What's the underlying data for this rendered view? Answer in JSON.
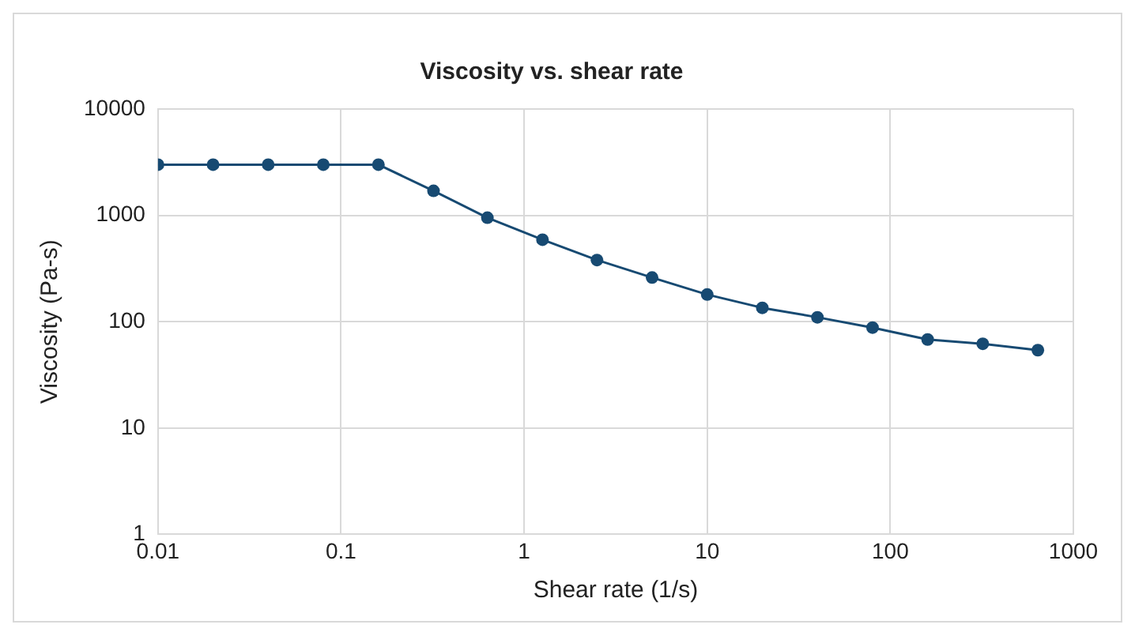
{
  "chart_data": {
    "type": "line",
    "title": "Viscosity vs. shear rate",
    "xlabel": "Shear rate (1/s)",
    "ylabel": "Viscosity (Pa-s)",
    "log": "xy",
    "x": [
      0.01,
      0.02,
      0.04,
      0.08,
      0.16,
      0.32,
      0.63,
      1.26,
      2.5,
      5,
      10,
      20,
      40,
      80,
      160,
      320,
      640
    ],
    "series": [
      {
        "color": "#174a72",
        "values": [
          3000,
          3000,
          3000,
          3000,
          3000,
          1700,
          950,
          590,
          380,
          260,
          180,
          135,
          110,
          88,
          68,
          62,
          54
        ]
      }
    ],
    "xlim": [
      0.01,
      1000
    ],
    "xticks": [
      0.01,
      0.1,
      1,
      10,
      100,
      1000
    ],
    "ylim": [
      1,
      10000
    ],
    "yticks": [
      1,
      10,
      100,
      1000,
      10000
    ],
    "grid": true,
    "legend": false,
    "marker": "circle",
    "line_style": "solid"
  }
}
